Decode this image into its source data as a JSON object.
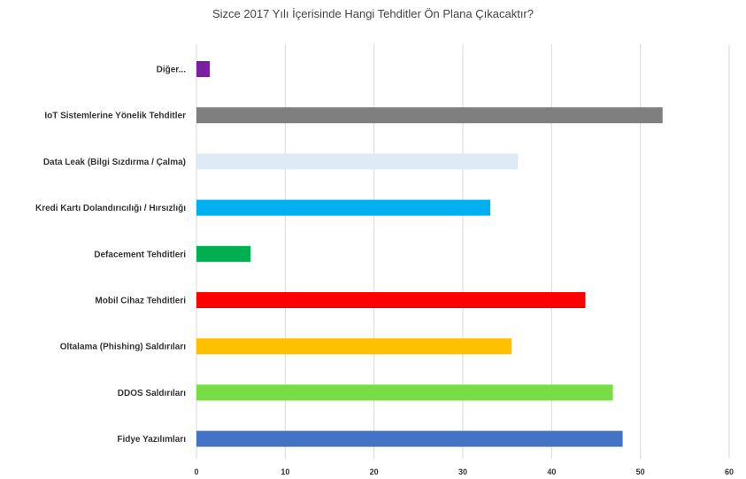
{
  "chart_data": {
    "type": "bar",
    "orientation": "horizontal",
    "title": "Sizce 2017 Yılı İçerisinde Hangi Tehditler Ön Plana Çıkacaktır?",
    "xlabel": "",
    "ylabel": "",
    "xlim": [
      0,
      60
    ],
    "xticks": [
      "0",
      "10",
      "20",
      "30",
      "40",
      "50",
      "60"
    ],
    "grid": true,
    "legend": "none",
    "categories": [
      "Diğer...",
      "IoT Sistemlerine Yönelik Tehditler",
      "Data Leak (Bilgi Sızdırma / Çalma)",
      "Kredi Kartı Dolandırıcılığı / Hırsızlığı",
      "Defacement Tehditleri",
      "Mobil Cihaz Tehditleri",
      "Oltalama (Phishing) Saldırıları",
      "DDOS Saldırıları",
      "Fidye Yazılımları"
    ],
    "values": [
      1.5,
      52.5,
      36.2,
      33.1,
      6.1,
      43.8,
      35.5,
      46.9,
      48.0
    ],
    "colors": [
      "#7a1fa2",
      "#7f7f7f",
      "#deebf7",
      "#00b0f0",
      "#00b050",
      "#ff0000",
      "#ffc000",
      "#77dd44",
      "#4472c4"
    ]
  }
}
